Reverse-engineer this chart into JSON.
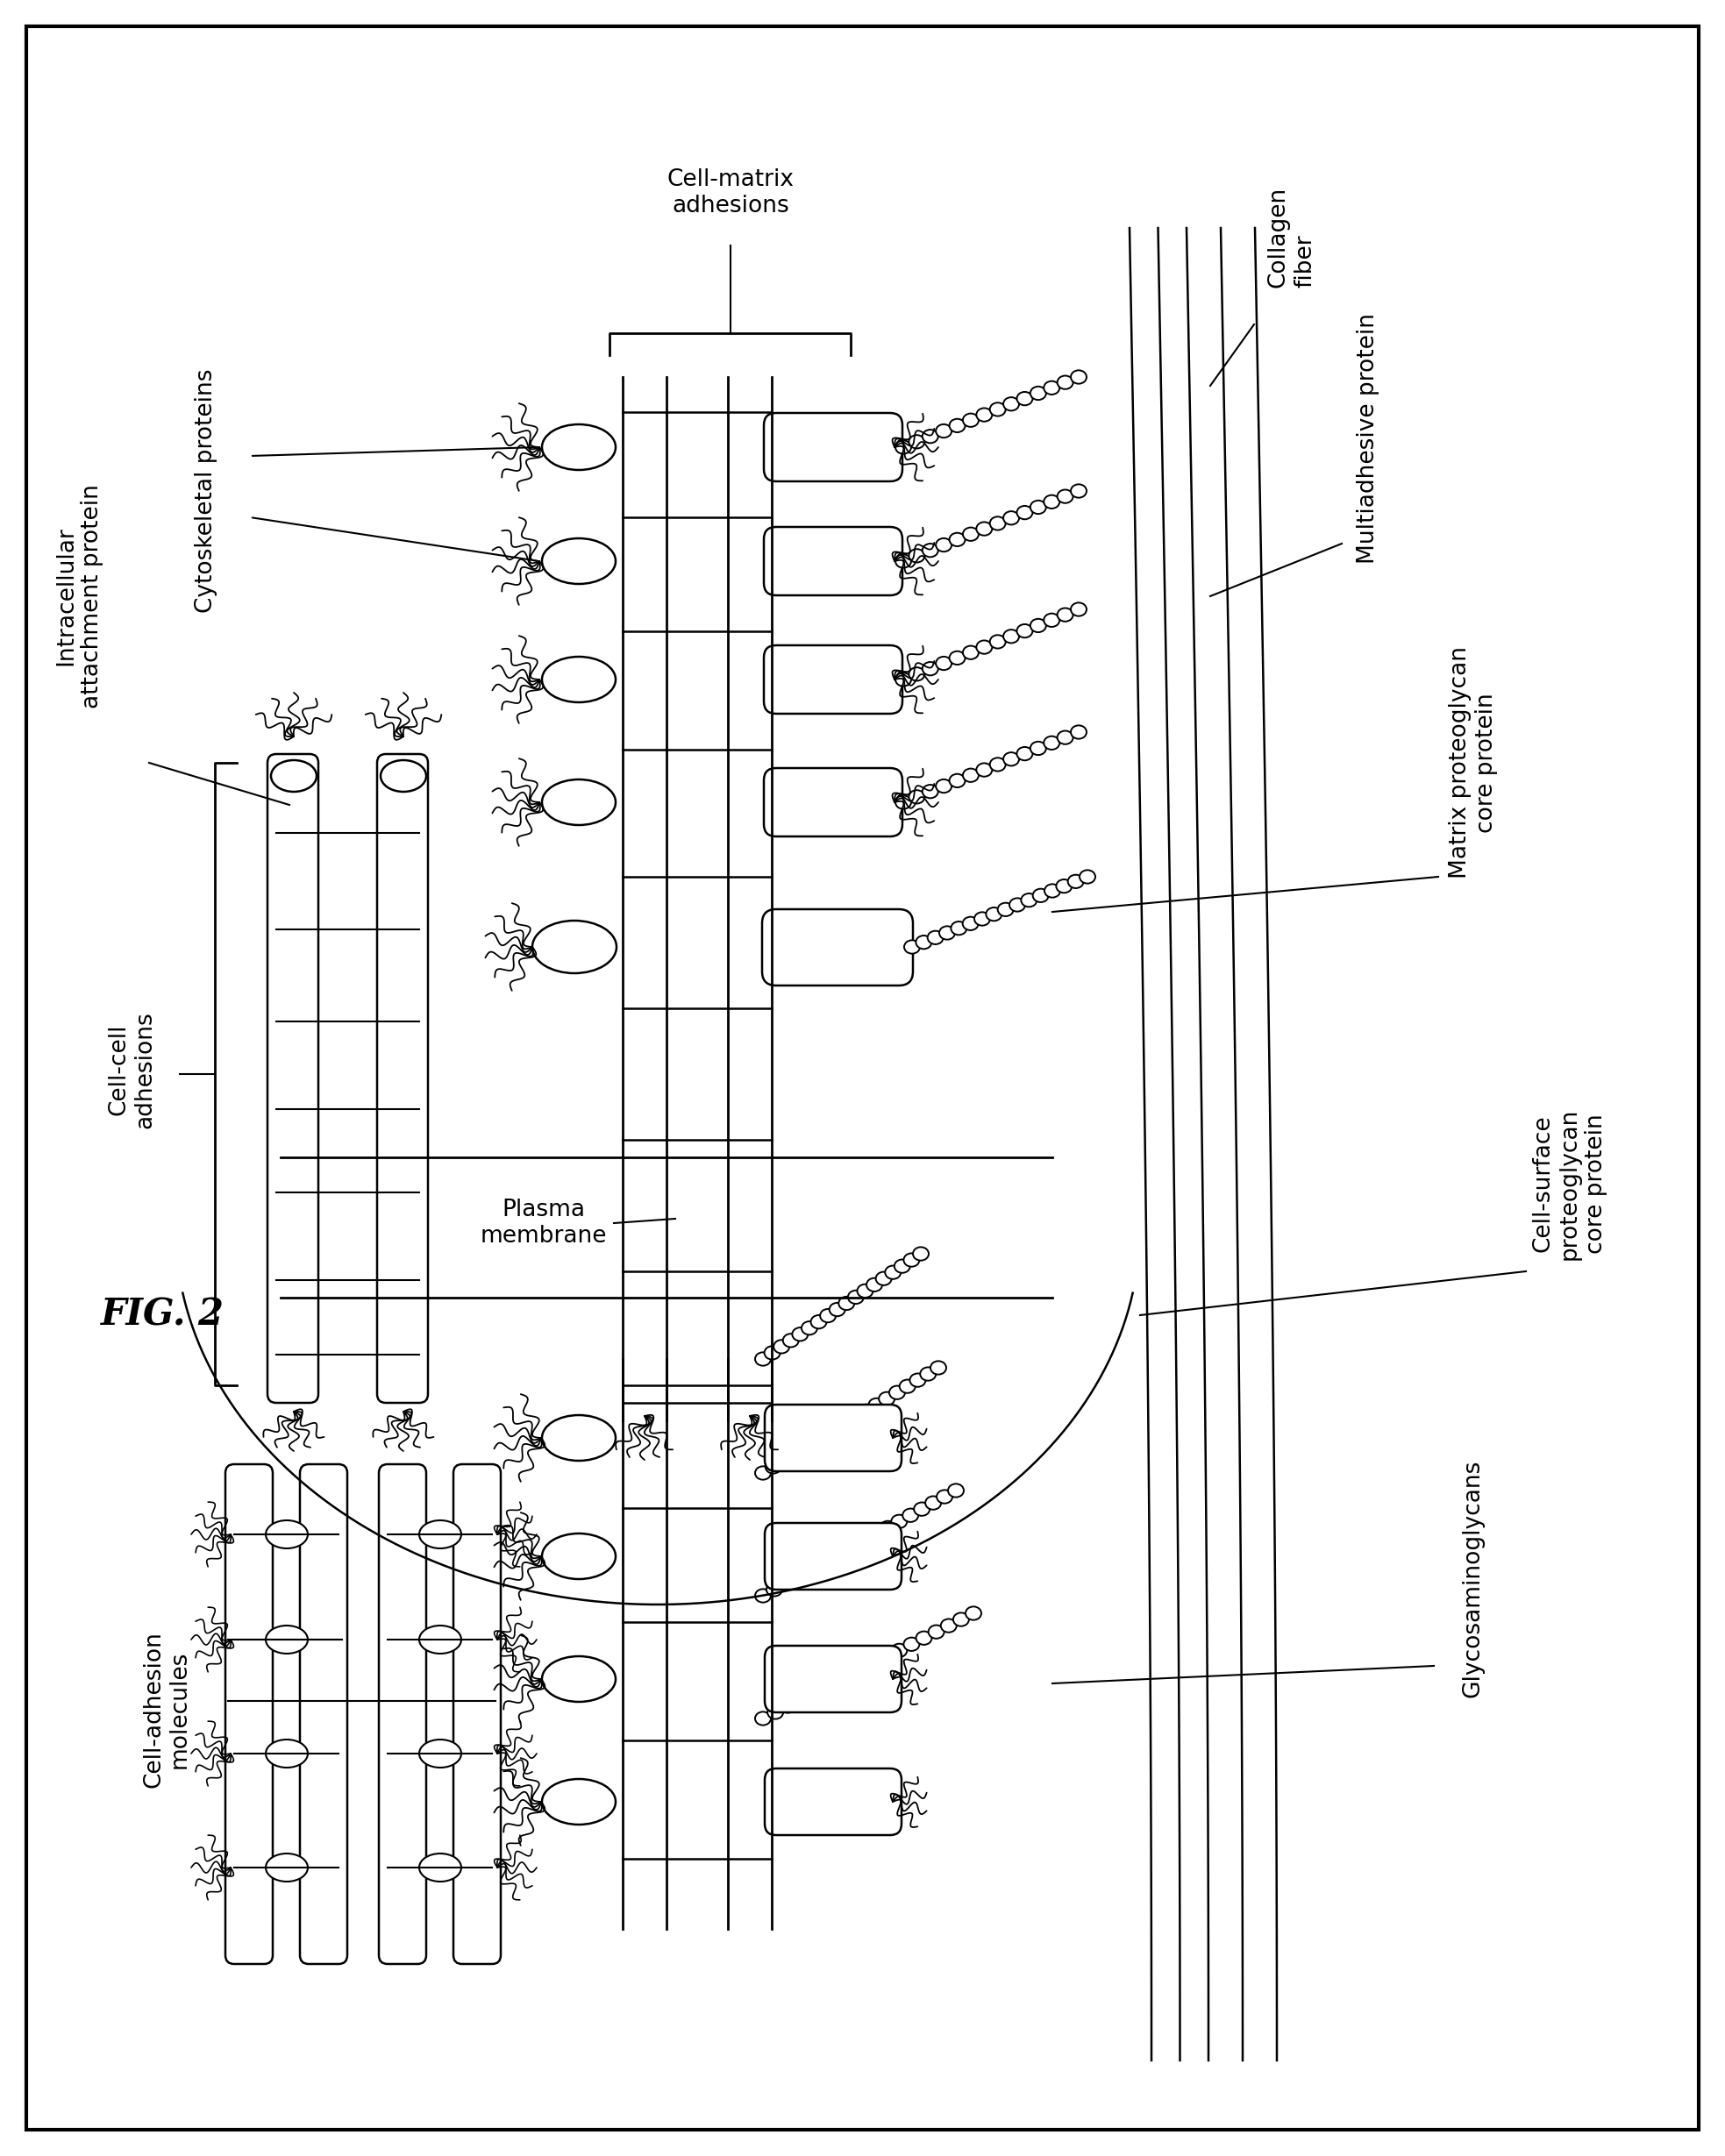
{
  "background_color": "#ffffff",
  "line_color": "#000000",
  "fig_label": "FIG. 2",
  "labels": {
    "intracellular_attachment_protein": "Intracellular\nattachment protein",
    "cytoskeletal_proteins": "Cytoskeletal proteins",
    "cell_matrix_adhesions": "Cell-matrix\nadhesions",
    "collagen_fiber": "Collagen\nfiber",
    "multiadhesive_protein": "Multiadhesive protein",
    "matrix_proteoglycan_core_protein": "Matrix proteoglycan\ncore protein",
    "cell_surface_proteoglycan_core_protein": "Cell-surface\nproteoglycan\ncore protein",
    "glycosaminoglycans": "Glycosaminoglycans",
    "cell_cell_adhesions": "Cell-cell adhesions",
    "plasma_membrane": "Plasma\nmembrane",
    "cell_adhesion_molecules": "Cell-adhesion\nmolecules"
  }
}
